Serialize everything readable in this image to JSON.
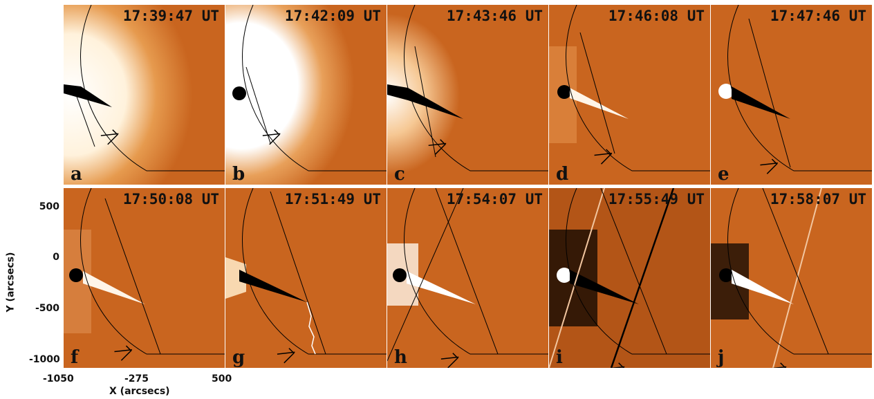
{
  "panels": [
    {
      "label": "a",
      "time": "17:39:47 UT"
    },
    {
      "label": "b",
      "time": "17:42:09 UT"
    },
    {
      "label": "c",
      "time": "17:43:46 UT"
    },
    {
      "label": "d",
      "time": "17:46:08 UT"
    },
    {
      "label": "e",
      "time": "17:47:46 UT"
    },
    {
      "label": "f",
      "time": "17:50:08 UT"
    },
    {
      "label": "g",
      "time": "17:51:49 UT"
    },
    {
      "label": "h",
      "time": "17:54:07 UT"
    },
    {
      "label": "i",
      "time": "17:55:49 UT"
    },
    {
      "label": "j",
      "time": "17:58:07 UT"
    }
  ],
  "axes": {
    "xlabel": "X (arcsecs)",
    "ylabel": "Y (arcsecs)",
    "xticks": [
      "-1050",
      "-275",
      "500"
    ],
    "yticks": [
      "500",
      "0",
      "-500",
      "-1000"
    ]
  },
  "colors": {
    "background": "#c9651f",
    "bright": "#ffffff",
    "dark": "#000000"
  }
}
